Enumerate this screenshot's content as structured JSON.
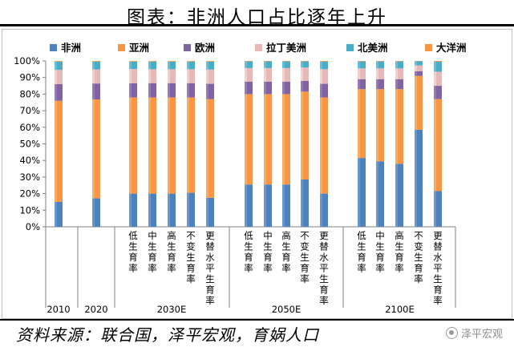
{
  "title": "图表：非洲人口占比逐年上升",
  "source": "资料来源：联合国，泽平宏观，育娲人口",
  "watermark": "泽平宏观",
  "chart_data": {
    "type": "bar",
    "stacked": true,
    "ylim": [
      0,
      100
    ],
    "yticks": [
      "0%",
      "10%",
      "20%",
      "30%",
      "40%",
      "50%",
      "60%",
      "70%",
      "80%",
      "90%",
      "100%"
    ],
    "legend_position": "top",
    "series": [
      {
        "name": "非洲",
        "color": "#4f81bd"
      },
      {
        "name": "亚洲",
        "color": "#f79646"
      },
      {
        "name": "欧洲",
        "color": "#8064a2"
      },
      {
        "name": "拉丁美洲",
        "color": "#e6b9b8"
      },
      {
        "name": "北美洲",
        "color": "#4bacc6"
      },
      {
        "name": "大洋洲",
        "color": "#f79646"
      }
    ],
    "groups": [
      {
        "label": "2010",
        "bars": [
          {
            "label": "",
            "values": [
              15,
              61,
              10,
              8.6,
              5,
              0.4
            ]
          }
        ]
      },
      {
        "label": "2020",
        "bars": [
          {
            "label": "",
            "values": [
              17.2,
              59.6,
              9.6,
              8.5,
              4.7,
              0.4
            ]
          }
        ]
      },
      {
        "label": "2030E",
        "bars": [
          {
            "label": "低生育率",
            "values": [
              20,
              58,
              8.5,
              8.6,
              4.5,
              0.4
            ]
          },
          {
            "label": "中生育率",
            "values": [
              20,
              58,
              8.6,
              8.4,
              4.6,
              0.4
            ]
          },
          {
            "label": "高生育率",
            "values": [
              20,
              58,
              8.6,
              8.4,
              4.6,
              0.4
            ]
          },
          {
            "label": "不变生育率",
            "values": [
              20.5,
              57.5,
              8.6,
              8.4,
              4.6,
              0.4
            ]
          },
          {
            "label": "更替水平生育率",
            "values": [
              17.5,
              59.5,
              9.2,
              8.6,
              4.8,
              0.4
            ]
          }
        ]
      },
      {
        "label": "2050E",
        "bars": [
          {
            "label": "低生育率",
            "values": [
              25.5,
              54.5,
              7.5,
              8.2,
              4,
              0.3
            ]
          },
          {
            "label": "中生育率",
            "values": [
              25.5,
              54.5,
              7.5,
              8.2,
              4,
              0.3
            ]
          },
          {
            "label": "高生育率",
            "values": [
              25.5,
              54.5,
              7.5,
              8.2,
              4,
              0.3
            ]
          },
          {
            "label": "不变生育率",
            "values": [
              28.5,
              53,
              6.5,
              8,
              3.7,
              0.3
            ]
          },
          {
            "label": "更替水平生育率",
            "values": [
              20,
              58,
              8.2,
              8.8,
              4.6,
              0.4
            ]
          }
        ]
      },
      {
        "label": "2100E",
        "bars": [
          {
            "label": "低生育率",
            "values": [
              41.5,
              41.5,
              6,
              6.5,
              4.2,
              0.3
            ]
          },
          {
            "label": "中生育率",
            "values": [
              39.5,
              43.5,
              6,
              6.5,
              4.2,
              0.3
            ]
          },
          {
            "label": "高生育率",
            "values": [
              38,
              45,
              6,
              6.5,
              4.2,
              0.3
            ]
          },
          {
            "label": "不变生育率",
            "values": [
              58.5,
              32.5,
              2.8,
              3.5,
              2.5,
              0.2
            ]
          },
          {
            "label": "更替水平生育率",
            "values": [
              21.5,
              55.5,
              8,
              8.5,
              6,
              0.5
            ]
          }
        ]
      }
    ]
  }
}
